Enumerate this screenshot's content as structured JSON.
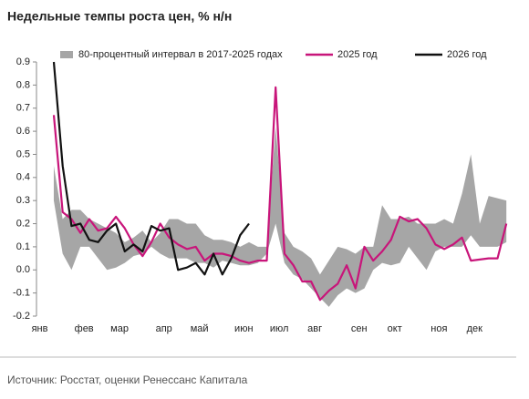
{
  "chart_data": {
    "type": "line",
    "title": "Недельные темпы роста цен, % н/н",
    "source": "Источник: Росстат, оценки Ренессанс Капитала",
    "categories": [
      "янв",
      null,
      null,
      null,
      null,
      "фев",
      null,
      null,
      null,
      "мар",
      null,
      null,
      null,
      null,
      "апр",
      null,
      null,
      null,
      "май",
      null,
      null,
      null,
      null,
      "июн",
      null,
      null,
      null,
      "июл",
      null,
      null,
      null,
      "авг",
      null,
      null,
      null,
      null,
      "сен",
      null,
      null,
      null,
      "окт",
      null,
      null,
      null,
      null,
      "ноя",
      null,
      null,
      null,
      "дек",
      null,
      null,
      null,
      null
    ],
    "ylim": [
      -0.2,
      0.9
    ],
    "yticks": [
      -0.2,
      -0.1,
      {
        "value": 0,
        "label": "0.0"
      },
      0.1,
      0.2,
      0.3,
      0.4,
      0.5,
      0.6,
      0.7,
      0.8,
      0.9
    ],
    "band": {
      "name": "80-процентный интервал в 2017-2025 годах",
      "color": "#a6a6a6",
      "lower": [
        null,
        null,
        0.3,
        0.07,
        0.0,
        0.1,
        0.1,
        0.05,
        0.0,
        0.01,
        0.03,
        0.06,
        0.07,
        0.1,
        0.07,
        0.05,
        0.05,
        0.05,
        0.03,
        0.03,
        0.01,
        0.04,
        0.03,
        0.02,
        0.02,
        0.03,
        0.07,
        0.2,
        0.03,
        -0.02,
        -0.04,
        -0.08,
        -0.12,
        -0.16,
        -0.11,
        -0.08,
        -0.1,
        -0.08,
        0.0,
        0.03,
        0.02,
        0.03,
        0.1,
        0.05,
        0.0,
        0.08,
        0.1,
        0.1,
        0.1,
        0.15,
        0.1,
        0.1,
        0.1,
        0.12
      ],
      "upper": [
        null,
        null,
        0.45,
        0.22,
        0.26,
        0.26,
        0.22,
        0.2,
        0.18,
        0.16,
        0.12,
        0.14,
        0.17,
        0.12,
        0.16,
        0.22,
        0.22,
        0.2,
        0.2,
        0.15,
        0.13,
        0.13,
        0.12,
        0.1,
        0.12,
        0.1,
        0.1,
        0.62,
        0.16,
        0.1,
        0.08,
        0.05,
        -0.02,
        0.04,
        0.1,
        0.09,
        0.07,
        0.1,
        0.1,
        0.28,
        0.22,
        0.22,
        0.23,
        0.2,
        0.2,
        0.2,
        0.22,
        0.2,
        0.33,
        0.5,
        0.2,
        0.32,
        0.31,
        0.3
      ]
    },
    "series": [
      {
        "name": "2025 год",
        "color": "#c8157a",
        "values": [
          null,
          null,
          0.67,
          0.25,
          0.22,
          0.16,
          0.22,
          0.17,
          0.18,
          0.23,
          0.18,
          0.11,
          0.06,
          0.12,
          0.2,
          0.14,
          0.11,
          0.09,
          0.1,
          0.04,
          0.07,
          0.07,
          0.06,
          0.04,
          0.03,
          0.04,
          0.04,
          0.79,
          0.07,
          0.02,
          -0.05,
          -0.05,
          -0.13,
          -0.09,
          -0.06,
          0.02,
          -0.08,
          0.1,
          0.04,
          0.08,
          0.13,
          0.23,
          0.21,
          0.22,
          0.18,
          0.11,
          0.09,
          0.11,
          0.14,
          0.04,
          0.045,
          0.05,
          0.05,
          0.2
        ]
      },
      {
        "name": "2026 год",
        "color": "#111111",
        "values": [
          null,
          null,
          0.9,
          0.45,
          0.19,
          0.2,
          0.13,
          0.12,
          0.17,
          0.2,
          0.08,
          0.11,
          0.08,
          0.19,
          0.17,
          0.18,
          0.0,
          0.01,
          0.03,
          -0.02,
          0.07,
          -0.02,
          0.05,
          0.15,
          0.2,
          null,
          null,
          null,
          null,
          null,
          null,
          null,
          null,
          null,
          null,
          null,
          null,
          null,
          null,
          null,
          null,
          null,
          null,
          null,
          null,
          null,
          null,
          null,
          null,
          null,
          null,
          null,
          null,
          null
        ]
      }
    ]
  }
}
